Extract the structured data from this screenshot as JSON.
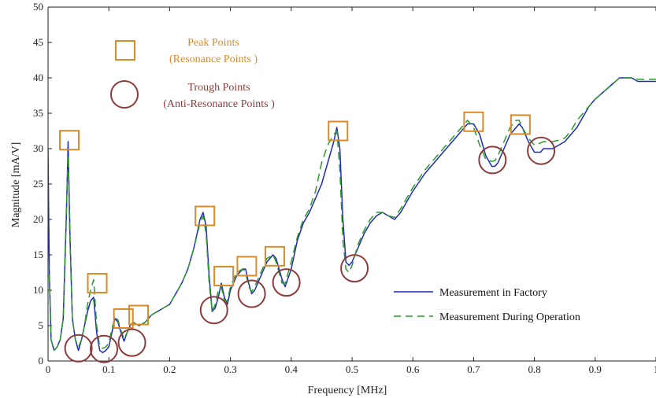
{
  "colors": {
    "factory_line": "#1f2db5",
    "operation_line": "#2a9a2a",
    "peak_marker": "#d98b2b",
    "trough_marker": "#8e3b3b",
    "axis": "#222222"
  },
  "chart_data": {
    "type": "line",
    "xlabel": "Frequency [MHz]",
    "ylabel": "Magnitude [mA/V]",
    "xlim": [
      0,
      1
    ],
    "ylim": [
      0,
      50
    ],
    "x_ticks": [
      "0",
      "0.1",
      "0.2",
      "0.3",
      "0.4",
      "0.5",
      "0.6",
      "0.7",
      "0.8",
      "0.9",
      "1"
    ],
    "y_ticks": [
      "0",
      "5",
      "10",
      "15",
      "20",
      "25",
      "30",
      "35",
      "40",
      "45",
      "50"
    ],
    "grid": false,
    "legend": {
      "placement": "lower-right",
      "entries": [
        {
          "label": "Measurement in Factory",
          "style": "solid"
        },
        {
          "label": "Measurement During Operation",
          "style": "dashed"
        }
      ]
    },
    "annotations": {
      "peak_title": "Peak Points",
      "peak_subtitle": "(Resonance Points )",
      "trough_title": "Trough Points",
      "trough_subtitle": "(Anti-Resonance Points )"
    },
    "series": [
      {
        "name": "Measurement in Factory",
        "x": [
          0,
          0.002,
          0.005,
          0.01,
          0.015,
          0.02,
          0.025,
          0.03,
          0.033,
          0.036,
          0.04,
          0.045,
          0.05,
          0.055,
          0.06,
          0.065,
          0.07,
          0.075,
          0.08,
          0.085,
          0.09,
          0.095,
          0.1,
          0.105,
          0.11,
          0.115,
          0.12,
          0.125,
          0.13,
          0.135,
          0.14,
          0.145,
          0.15,
          0.16,
          0.17,
          0.18,
          0.19,
          0.2,
          0.21,
          0.22,
          0.23,
          0.24,
          0.25,
          0.255,
          0.26,
          0.265,
          0.27,
          0.275,
          0.28,
          0.285,
          0.29,
          0.295,
          0.3,
          0.31,
          0.32,
          0.325,
          0.33,
          0.335,
          0.34,
          0.35,
          0.36,
          0.37,
          0.375,
          0.38,
          0.385,
          0.39,
          0.4,
          0.41,
          0.42,
          0.43,
          0.44,
          0.45,
          0.46,
          0.47,
          0.475,
          0.48,
          0.485,
          0.49,
          0.495,
          0.5,
          0.505,
          0.51,
          0.52,
          0.53,
          0.54,
          0.55,
          0.56,
          0.57,
          0.58,
          0.59,
          0.6,
          0.62,
          0.64,
          0.66,
          0.68,
          0.69,
          0.7,
          0.71,
          0.72,
          0.73,
          0.735,
          0.74,
          0.75,
          0.76,
          0.77,
          0.775,
          0.78,
          0.79,
          0.8,
          0.81,
          0.815,
          0.82,
          0.83,
          0.84,
          0.85,
          0.86,
          0.87,
          0.88,
          0.89,
          0.9,
          0.92,
          0.94,
          0.96,
          0.97,
          0.98,
          0.99,
          1.0
        ],
        "values": [
          30,
          13,
          3,
          1.5,
          2,
          3,
          6,
          20,
          31,
          18,
          6,
          3,
          1.5,
          3,
          5,
          7,
          8.5,
          9,
          4,
          1.5,
          1.2,
          1.5,
          2,
          4,
          6,
          5.5,
          4,
          2.8,
          4,
          5,
          5.5,
          5.2,
          5,
          5.5,
          6.5,
          7,
          7.5,
          8,
          9.5,
          11,
          13,
          16,
          20,
          21,
          19,
          12,
          7,
          7.5,
          9,
          11,
          9,
          8,
          10,
          12,
          13,
          13,
          11,
          9.5,
          10,
          12,
          14,
          15,
          14.5,
          13,
          11.5,
          10.5,
          13,
          17,
          19.5,
          21,
          23,
          25,
          28,
          31,
          33,
          30,
          20,
          14,
          13.5,
          14,
          15,
          16,
          18,
          19.5,
          20.5,
          21,
          20.5,
          20,
          21,
          22.5,
          24,
          26.5,
          28.5,
          30.5,
          32.5,
          33.5,
          33.5,
          32,
          29,
          27.5,
          27.5,
          28,
          30,
          32,
          33,
          33.5,
          33,
          31,
          29.5,
          29.5,
          30,
          30,
          30,
          30.5,
          31,
          32,
          33,
          34.5,
          36,
          37,
          38.5,
          40,
          40,
          39.5,
          39.5,
          39.5,
          39.5
        ]
      },
      {
        "name": "Measurement During Operation",
        "x": [
          0,
          0.002,
          0.005,
          0.01,
          0.015,
          0.02,
          0.025,
          0.03,
          0.033,
          0.036,
          0.04,
          0.045,
          0.05,
          0.055,
          0.06,
          0.065,
          0.07,
          0.075,
          0.08,
          0.085,
          0.09,
          0.095,
          0.1,
          0.105,
          0.11,
          0.115,
          0.12,
          0.125,
          0.13,
          0.135,
          0.14,
          0.145,
          0.15,
          0.16,
          0.17,
          0.18,
          0.19,
          0.2,
          0.21,
          0.22,
          0.23,
          0.24,
          0.25,
          0.255,
          0.26,
          0.265,
          0.27,
          0.275,
          0.28,
          0.285,
          0.29,
          0.295,
          0.3,
          0.31,
          0.32,
          0.325,
          0.33,
          0.335,
          0.34,
          0.35,
          0.36,
          0.37,
          0.375,
          0.38,
          0.385,
          0.39,
          0.4,
          0.41,
          0.42,
          0.43,
          0.44,
          0.45,
          0.46,
          0.47,
          0.475,
          0.48,
          0.485,
          0.49,
          0.495,
          0.5,
          0.505,
          0.51,
          0.52,
          0.53,
          0.54,
          0.55,
          0.56,
          0.57,
          0.58,
          0.59,
          0.6,
          0.62,
          0.64,
          0.66,
          0.68,
          0.69,
          0.7,
          0.71,
          0.72,
          0.73,
          0.735,
          0.74,
          0.75,
          0.76,
          0.77,
          0.775,
          0.78,
          0.79,
          0.8,
          0.81,
          0.815,
          0.82,
          0.83,
          0.84,
          0.85,
          0.86,
          0.87,
          0.88,
          0.89,
          0.9,
          0.92,
          0.94,
          0.96,
          0.97,
          0.98,
          0.99,
          1.0
        ],
        "values": [
          14,
          12,
          3,
          1.5,
          2,
          3,
          6,
          21,
          29,
          17,
          6,
          3,
          2,
          3,
          5,
          8,
          10,
          11.5,
          5,
          2,
          1.8,
          2,
          2.5,
          4.5,
          6.2,
          5.8,
          4.3,
          3.2,
          4,
          5,
          5.5,
          5.2,
          5,
          5.5,
          6.5,
          7,
          7.5,
          8,
          9.5,
          11,
          13,
          16,
          19.5,
          20.5,
          18,
          11,
          7,
          8,
          10,
          10.5,
          8.5,
          8.5,
          10.5,
          12.5,
          13,
          12.5,
          10.5,
          9.8,
          10.5,
          12.5,
          14.5,
          15,
          14,
          12.5,
          11,
          11,
          14,
          17.5,
          20,
          21.5,
          24,
          28,
          30.5,
          32,
          32.5,
          27,
          17,
          13,
          12.5,
          13.5,
          15,
          16.5,
          18.5,
          20,
          21,
          21,
          20.5,
          20.3,
          21.5,
          23,
          24.5,
          27,
          29,
          31,
          33,
          34,
          33,
          30.5,
          28.5,
          28.2,
          28.3,
          29,
          31,
          33,
          34,
          34,
          33,
          31.5,
          30.5,
          30.8,
          31,
          31,
          31,
          31.2,
          31.5,
          32.5,
          34,
          35,
          36,
          37,
          38.5,
          40,
          40,
          39.8,
          39.8,
          39.8,
          39.8
        ]
      }
    ],
    "peak_points": [
      {
        "x": 0.035,
        "y": 31.2
      },
      {
        "x": 0.081,
        "y": 11
      },
      {
        "x": 0.124,
        "y": 6
      },
      {
        "x": 0.149,
        "y": 6.5
      },
      {
        "x": 0.258,
        "y": 20.5
      },
      {
        "x": 0.289,
        "y": 12
      },
      {
        "x": 0.327,
        "y": 13.4
      },
      {
        "x": 0.373,
        "y": 14.8
      },
      {
        "x": 0.477,
        "y": 32.5
      },
      {
        "x": 0.7,
        "y": 33.8
      },
      {
        "x": 0.777,
        "y": 33.4
      }
    ],
    "trough_points": [
      {
        "x": 0.05,
        "y": 1.8
      },
      {
        "x": 0.092,
        "y": 1.7
      },
      {
        "x": 0.138,
        "y": 2.6
      },
      {
        "x": 0.273,
        "y": 7.2
      },
      {
        "x": 0.335,
        "y": 9.5
      },
      {
        "x": 0.392,
        "y": 11.1
      },
      {
        "x": 0.504,
        "y": 13.1
      },
      {
        "x": 0.731,
        "y": 28.4
      },
      {
        "x": 0.811,
        "y": 29.7
      }
    ]
  }
}
